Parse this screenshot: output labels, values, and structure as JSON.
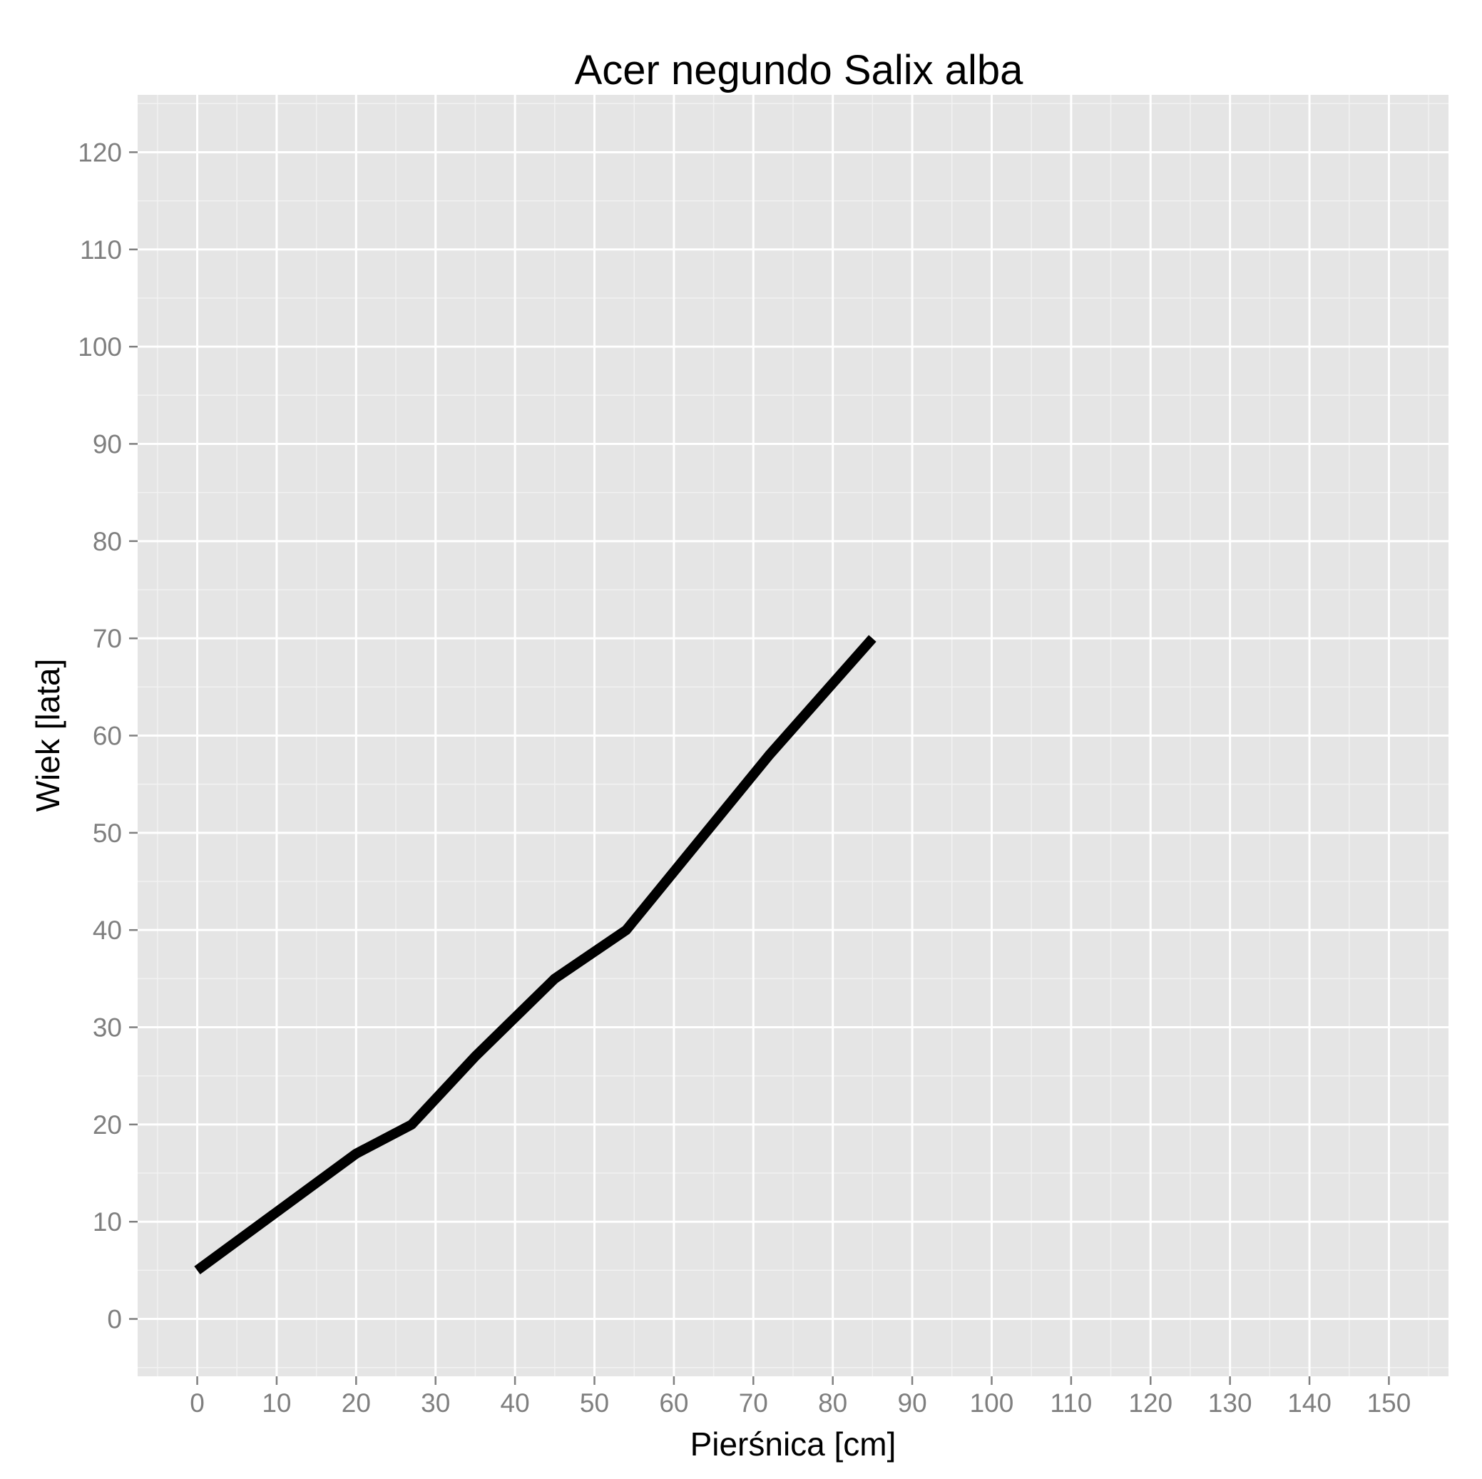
{
  "chart_data": {
    "type": "line",
    "title": "Acer negundo Salix alba",
    "xlabel": "Pierśnica [cm]",
    "ylabel": "Wiek [lata]",
    "xlim": [
      -7.5,
      157.5
    ],
    "ylim": [
      -5.9,
      125.9
    ],
    "xticks": [
      0,
      10,
      20,
      30,
      40,
      50,
      60,
      70,
      80,
      90,
      100,
      110,
      120,
      130,
      140,
      150
    ],
    "yticks": [
      0,
      10,
      20,
      30,
      40,
      50,
      60,
      70,
      80,
      90,
      100,
      110,
      120
    ],
    "grid": true,
    "series": [
      {
        "color": "#000000",
        "x": [
          0,
          10,
          20,
          27,
          35,
          45,
          54,
          62,
          72,
          85
        ],
        "y": [
          5,
          11,
          17,
          20,
          27,
          35,
          40,
          48,
          58,
          70
        ]
      }
    ]
  }
}
